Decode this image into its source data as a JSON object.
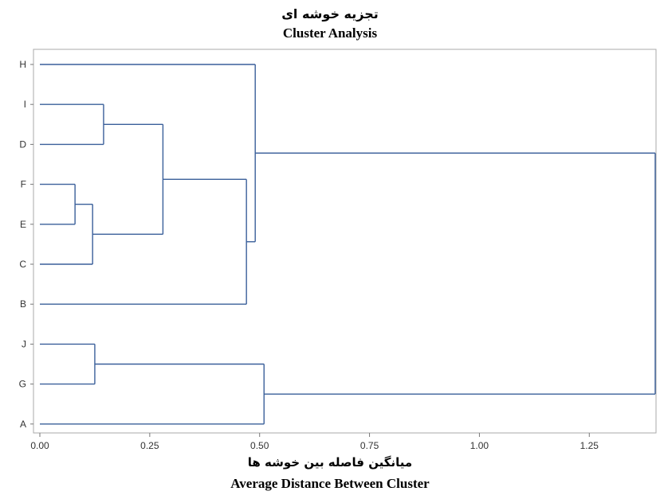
{
  "chart_data": {
    "type": "dendrogram",
    "title_fa": "تجزیه خوشه ای",
    "title_en": "Cluster Analysis",
    "xlabel_fa": "میانگین فاصله بین خوشه ها",
    "xlabel_en": "Average Distance Between Cluster",
    "xlim": [
      0,
      1.4
    ],
    "xticks": [
      {
        "value": 0,
        "label": "0.00"
      },
      {
        "value": 0.25,
        "label": "0.25"
      },
      {
        "value": 0.5,
        "label": "0.50"
      },
      {
        "value": 0.75,
        "label": "0.75"
      },
      {
        "value": 1.0,
        "label": "1.00"
      },
      {
        "value": 1.25,
        "label": "1.25"
      }
    ],
    "leaves": [
      "H",
      "I",
      "D",
      "F",
      "E",
      "C",
      "B",
      "J",
      "G",
      "A"
    ],
    "merges": [
      {
        "left": "F",
        "right": "E",
        "height": 0.08
      },
      {
        "left": "FE",
        "right": "C",
        "height": 0.12
      },
      {
        "left": "J",
        "right": "G",
        "height": 0.125
      },
      {
        "left": "I",
        "right": "D",
        "height": 0.145
      },
      {
        "left": "ID",
        "right": "FEC",
        "height": 0.28
      },
      {
        "left": "IDFEC",
        "right": "B",
        "height": 0.47
      },
      {
        "left": "H",
        "right": "IDFECB",
        "height": 0.49
      },
      {
        "left": "JG",
        "right": "A",
        "height": 0.51
      },
      {
        "left": "HIDFECB",
        "right": "JGA",
        "height": 1.4
      }
    ],
    "line_color": "#3a5f9a",
    "grid": false
  }
}
